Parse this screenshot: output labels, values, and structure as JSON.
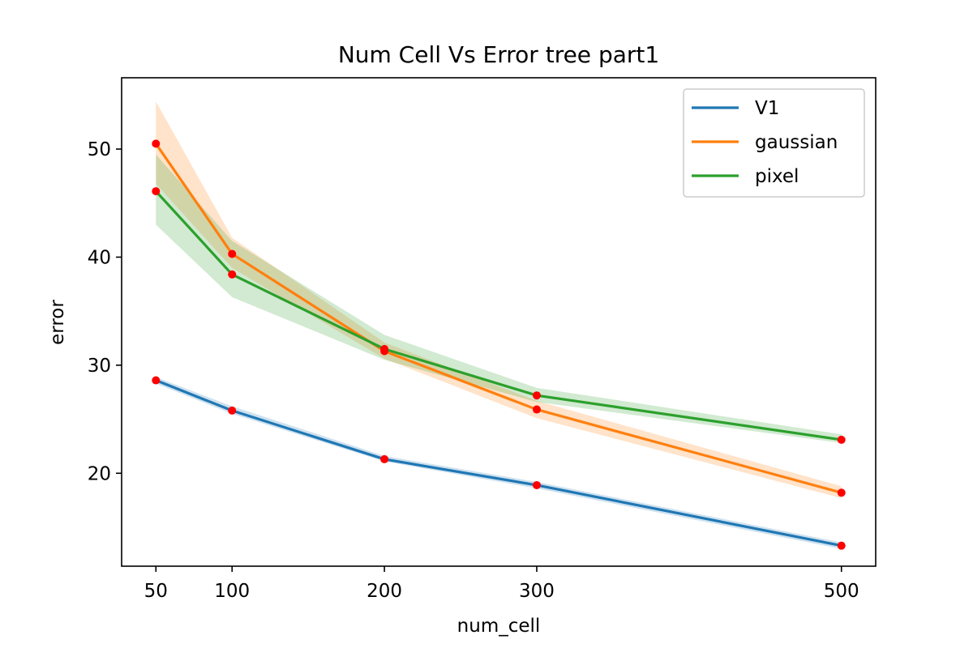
{
  "chart_data": {
    "type": "line",
    "title": "Num Cell Vs Error tree part1",
    "xlabel": "num_cell",
    "ylabel": "error",
    "x": [
      50,
      100,
      200,
      300,
      500
    ],
    "xlim": [
      27.5,
      522.5
    ],
    "ylim": [
      11.4,
      56.6
    ],
    "xticks": [
      50,
      100,
      200,
      300,
      500
    ],
    "yticks": [
      20,
      30,
      40,
      50
    ],
    "legend_position": "top-right",
    "grid": false,
    "marker_color": "#ff0000",
    "series": [
      {
        "name": "V1",
        "color": "#1f77b4",
        "values": [
          28.6,
          25.8,
          21.3,
          18.9,
          13.3
        ],
        "band_lower": [
          28.3,
          25.5,
          21.1,
          18.6,
          13.0
        ],
        "band_upper": [
          28.9,
          26.2,
          21.6,
          19.2,
          13.6
        ]
      },
      {
        "name": "gaussian",
        "color": "#ff7f0e",
        "values": [
          50.5,
          40.3,
          31.3,
          25.9,
          18.2
        ],
        "band_lower": [
          46.8,
          39.0,
          30.6,
          25.1,
          17.7
        ],
        "band_upper": [
          54.4,
          41.8,
          32.1,
          26.7,
          18.8
        ]
      },
      {
        "name": "pixel",
        "color": "#2ca02c",
        "values": [
          46.1,
          38.4,
          31.5,
          27.2,
          23.1
        ],
        "band_lower": [
          43.0,
          36.3,
          30.5,
          26.6,
          22.8
        ],
        "band_upper": [
          49.5,
          41.5,
          32.8,
          27.9,
          23.6
        ]
      }
    ]
  }
}
